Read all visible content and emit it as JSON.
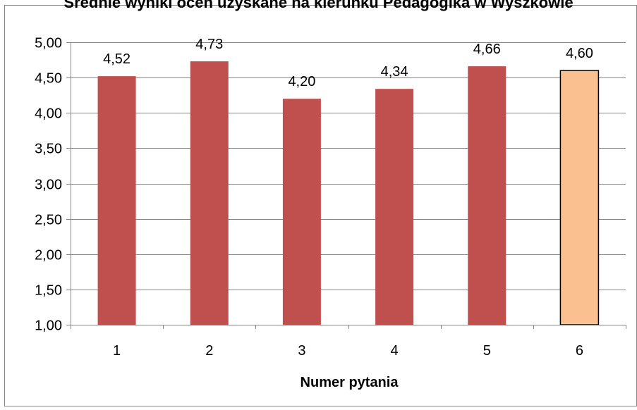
{
  "chart_data": {
    "type": "bar",
    "title": "Średnie wyniki ocen uzyskane na kierunku Pedagogika w Wyszkowie",
    "xlabel": "Numer pytania",
    "ylabel": "",
    "categories": [
      "1",
      "2",
      "3",
      "4",
      "5",
      "6"
    ],
    "values": [
      4.52,
      4.73,
      4.2,
      4.34,
      4.66,
      4.6
    ],
    "value_labels": [
      "4,52",
      "4,73",
      "4,20",
      "4,34",
      "4,66",
      "4,60"
    ],
    "ylim": [
      1.0,
      5.0
    ],
    "yticks": [
      1.0,
      1.5,
      2.0,
      2.5,
      3.0,
      3.5,
      4.0,
      4.5,
      5.0
    ],
    "ytick_labels": [
      "1,00",
      "1,50",
      "2,00",
      "2,50",
      "3,00",
      "3,50",
      "4,00",
      "4,50",
      "5,00"
    ],
    "grid": true,
    "legend": "none",
    "colors": {
      "bar": "#c0504d",
      "highlight_bar": "#fac090",
      "highlight_stroke": "#000000",
      "grid": "#868686",
      "axis": "#868686",
      "frame": "#868686"
    },
    "highlight_index": 5
  }
}
